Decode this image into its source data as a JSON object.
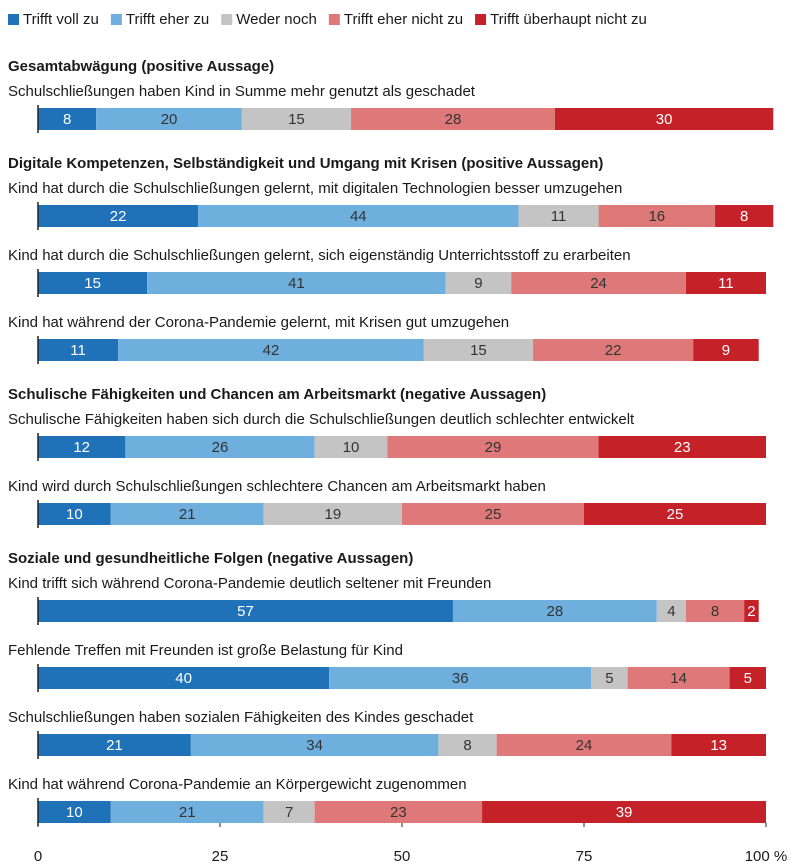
{
  "chart_data": {
    "type": "bar",
    "orientation": "horizontal",
    "stacked": true,
    "groups": [
      {
        "title": "Gesamtabwägung (positive Aussage)",
        "categories": [
          "Schulschließungen haben Kind in Summe mehr genutzt als geschadet"
        ]
      },
      {
        "title": "Digitale Kompetenzen, Selbständigkeit und Umgang mit Krisen (positive Aussagen)",
        "categories": [
          "Kind hat durch die Schulschließungen gelernt, mit digitalen Technologien besser umzugehen",
          "Kind hat durch die Schulschließungen gelernt, sich eigenständig Unterrichtsstoff zu erarbeiten",
          "Kind hat während der Corona-Pandemie gelernt, mit Krisen gut umzugehen"
        ]
      },
      {
        "title": "Schulische Fähigkeiten und Chancen am Arbeitsmarkt (negative Aussagen)",
        "categories": [
          "Schulische Fähigkeiten haben sich durch die Schulschließungen deutlich schlechter entwickelt",
          "Kind wird durch Schulschließungen schlechtere Chancen am Arbeitsmarkt haben"
        ]
      },
      {
        "title": "Soziale und gesundheitliche Folgen (negative Aussagen)",
        "categories": [
          "Kind trifft sich während Corona-Pandemie deutlich seltener mit Freunden",
          "Fehlende Treffen mit Freunden ist große Belastung für Kind",
          "Schulschließungen haben sozialen Fähigkeiten des Kindes geschadet",
          "Kind hat während Corona-Pandemie an Körpergewicht zugenommen"
        ]
      }
    ],
    "series": [
      {
        "name": "Trifft voll zu",
        "color": "#1f72b8",
        "values": [
          8,
          22,
          15,
          11,
          12,
          10,
          57,
          40,
          21,
          10
        ]
      },
      {
        "name": "Trifft eher zu",
        "color": "#6fafde",
        "values": [
          20,
          44,
          41,
          42,
          26,
          21,
          28,
          36,
          34,
          21
        ]
      },
      {
        "name": "Weder noch",
        "color": "#c4c4c4",
        "values": [
          15,
          11,
          9,
          15,
          10,
          19,
          4,
          5,
          8,
          7
        ]
      },
      {
        "name": "Trifft eher nicht zu",
        "color": "#df7878",
        "values": [
          28,
          16,
          24,
          22,
          29,
          25,
          8,
          14,
          24,
          23
        ]
      },
      {
        "name": "Trifft überhaupt nicht zu",
        "color": "#c42228",
        "values": [
          30,
          8,
          11,
          9,
          23,
          25,
          2,
          5,
          13,
          39
        ]
      }
    ],
    "xlim": [
      0,
      100
    ],
    "xticks": [
      0,
      25,
      50,
      75,
      {
        "value": 100,
        "label": "100 %"
      }
    ]
  }
}
